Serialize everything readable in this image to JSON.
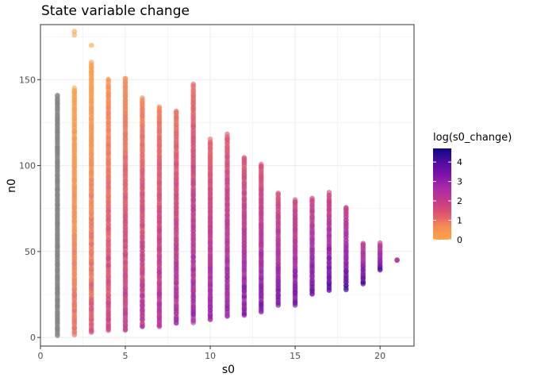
{
  "chart_data": {
    "type": "scatter",
    "title": "State variable change",
    "xlabel": "s0",
    "ylabel": "n0",
    "xlim": [
      0,
      22
    ],
    "ylim": [
      -5,
      182
    ],
    "x_ticks": [
      0,
      5,
      10,
      15,
      20
    ],
    "y_ticks": [
      0,
      50,
      100,
      150
    ],
    "grid": true,
    "theme": "bw",
    "point_opacity": 0.6,
    "na_color": "#808080",
    "legend": {
      "title": "log(s0_change)",
      "position": "right",
      "min": 0,
      "max": 4.7,
      "ticks": [
        0,
        1,
        2,
        3,
        4
      ],
      "palette": [
        "#FDA448",
        "#F58C54",
        "#E0556E",
        "#C3398B",
        "#A72BA8",
        "#7C12AA",
        "#4E0AA0",
        "#0D0887"
      ]
    },
    "columns": [
      {
        "x": 1,
        "n_min": 1,
        "n_max": 141,
        "c_min": null,
        "c_max": null,
        "outliers": []
      },
      {
        "x": 2,
        "n_min": 2,
        "n_max": 145,
        "c_min": 0,
        "c_max": 1.1,
        "outliers": [
          176,
          178
        ]
      },
      {
        "x": 3,
        "n_min": 3,
        "n_max": 160,
        "c_min": 0,
        "c_max": 1.6,
        "outliers": [
          170
        ]
      },
      {
        "x": 4,
        "n_min": 4,
        "n_max": 150,
        "c_min": 0.4,
        "c_max": 2.0,
        "outliers": []
      },
      {
        "x": 5,
        "n_min": 4,
        "n_max": 151,
        "c_min": 0.5,
        "c_max": 2.3,
        "outliers": []
      },
      {
        "x": 6,
        "n_min": 6,
        "n_max": 139,
        "c_min": 0.6,
        "c_max": 2.6,
        "outliers": []
      },
      {
        "x": 7,
        "n_min": 6,
        "n_max": 134,
        "c_min": 0.7,
        "c_max": 2.8,
        "outliers": []
      },
      {
        "x": 8,
        "n_min": 8,
        "n_max": 132,
        "c_min": 0.8,
        "c_max": 3.0,
        "outliers": []
      },
      {
        "x": 9,
        "n_min": 9,
        "n_max": 147,
        "c_min": 0.9,
        "c_max": 3.2,
        "outliers": []
      },
      {
        "x": 10,
        "n_min": 10,
        "n_max": 115,
        "c_min": 1.0,
        "c_max": 3.3,
        "outliers": []
      },
      {
        "x": 11,
        "n_min": 12,
        "n_max": 118,
        "c_min": 1.1,
        "c_max": 3.5,
        "outliers": []
      },
      {
        "x": 12,
        "n_min": 13,
        "n_max": 105,
        "c_min": 1.2,
        "c_max": 3.6,
        "outliers": []
      },
      {
        "x": 13,
        "n_min": 15,
        "n_max": 101,
        "c_min": 1.3,
        "c_max": 3.7,
        "outliers": []
      },
      {
        "x": 14,
        "n_min": 19,
        "n_max": 84,
        "c_min": 1.4,
        "c_max": 3.8,
        "outliers": []
      },
      {
        "x": 15,
        "n_min": 19,
        "n_max": 80,
        "c_min": 1.5,
        "c_max": 3.9,
        "outliers": []
      },
      {
        "x": 16,
        "n_min": 25,
        "n_max": 81,
        "c_min": 1.6,
        "c_max": 4.0,
        "outliers": []
      },
      {
        "x": 17,
        "n_min": 27,
        "n_max": 84,
        "c_min": 1.7,
        "c_max": 4.1,
        "outliers": []
      },
      {
        "x": 18,
        "n_min": 28,
        "n_max": 76,
        "c_min": 1.8,
        "c_max": 4.2,
        "outliers": []
      },
      {
        "x": 19,
        "n_min": 31,
        "n_max": 55,
        "c_min": 1.9,
        "c_max": 4.2,
        "outliers": []
      },
      {
        "x": 20,
        "n_min": 39,
        "n_max": 55,
        "c_min": 2.0,
        "c_max": 4.3,
        "outliers": []
      },
      {
        "x": 21,
        "n_min": 45,
        "n_max": 45,
        "c_min": 2.1,
        "c_max": 2.1,
        "outliers": []
      }
    ]
  }
}
